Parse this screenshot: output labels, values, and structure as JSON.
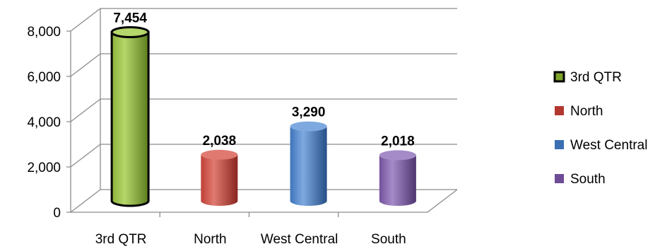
{
  "chart_data": {
    "type": "bar",
    "style": "3d-cylinder",
    "categories": [
      "3rd QTR",
      "North",
      "West Central",
      "South"
    ],
    "values": [
      7454,
      2038,
      3290,
      2018
    ],
    "data_labels": [
      "7,454",
      "2,038",
      "3,290",
      "2,018"
    ],
    "ylim": [
      0,
      8000
    ],
    "yticks": [
      0,
      2000,
      4000,
      6000,
      8000
    ],
    "ytick_labels": [
      "0",
      "2,000",
      "4,000",
      "6,000",
      "8,000"
    ],
    "grid": true,
    "legend_position": "right",
    "legend": [
      {
        "label": "3rd QTR",
        "color": "#7ea22c",
        "outline": "#000000"
      },
      {
        "label": "North",
        "color": "#b2382f"
      },
      {
        "label": "West Central",
        "color": "#3b6fb3"
      },
      {
        "label": "South",
        "color": "#6e4b96"
      }
    ],
    "colors": [
      {
        "light": "#b5d66a",
        "mid": "#8cb23a",
        "dark": "#5c7d1e",
        "outline": "#000000"
      },
      {
        "light": "#e07a70",
        "mid": "#be3f36",
        "dark": "#8a2620",
        "outline": "none"
      },
      {
        "light": "#7ea9e0",
        "mid": "#3f74ba",
        "dark": "#264f86",
        "outline": "none"
      },
      {
        "light": "#a58bc8",
        "mid": "#73519c",
        "dark": "#4e3570",
        "outline": "none"
      }
    ]
  }
}
